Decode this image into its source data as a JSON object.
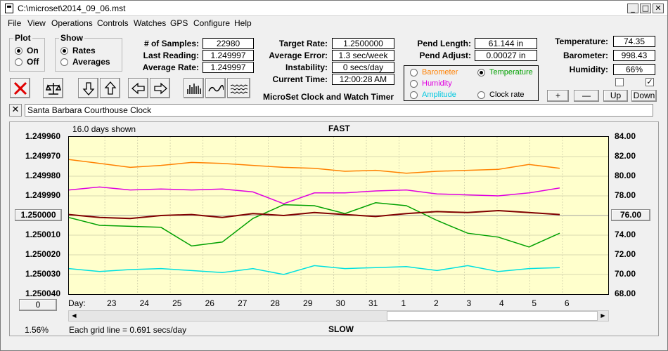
{
  "window": {
    "title": "C:\\microset\\2014_09_06.mst",
    "min_glyph": "_",
    "max_glyph": "□",
    "close_glyph": "✕"
  },
  "menu": [
    "File",
    "View",
    "Operations",
    "Controls",
    "Watches",
    "GPS",
    "Configure",
    "Help"
  ],
  "plot_group": {
    "title": "Plot",
    "on": "On",
    "off": "Off",
    "selected": "On"
  },
  "show_group": {
    "title": "Show",
    "rates": "Rates",
    "averages": "Averages",
    "selected": "Rates"
  },
  "stats": {
    "samples_label": "# of Samples:",
    "samples": "22980",
    "last_label": "Last Reading:",
    "last": "1.249997",
    "avg_label": "Average Rate:",
    "avg": "1.249997"
  },
  "targets": {
    "target_label": "Target Rate:",
    "target": "1.2500000",
    "avgerr_label": "Average Error:",
    "avgerr": "1.3 sec/week",
    "instab_label": "Instability:",
    "instab": "0 secs/day",
    "time_label": "Current Time:",
    "time": "12:00:28 AM",
    "app_name": "MicroSet Clock and Watch Timer"
  },
  "pendulum": {
    "length_label": "Pend Length:",
    "length": "61.144 in",
    "adjust_label": "Pend Adjust:",
    "adjust": "0.00027 in"
  },
  "sensors": {
    "barometer": "Barometer",
    "temperature": "Temperature",
    "humidity": "Humidity",
    "amplitude": "Amplitude",
    "clock_rate": "Clock rate",
    "selected": "Temperature"
  },
  "environment": {
    "temp_label": "Temperature:",
    "temp": "74.35",
    "baro_label": "Barometer:",
    "baro": "998.43",
    "hum_label": "Humidity:",
    "hum": "66%",
    "check1": false,
    "check2": true
  },
  "scale_buttons": {
    "plus": "+",
    "minus": "—",
    "up": "Up",
    "down": "Down"
  },
  "clock_name": "Santa Barbara Courthouse Clock",
  "close_name_glyph": "✕",
  "plot": {
    "days_shown": "16.0 days shown",
    "fast": "FAST",
    "slow": "SLOW",
    "center_rate": "1.250000",
    "center_temp": "76.00",
    "left_zero": "0",
    "percent": "1.56%",
    "grid_note": "Each grid line = 0.691 secs/day",
    "day_label": "Day:"
  },
  "colors": {
    "background": "#ffffcc",
    "rate": "#800000",
    "temperature": "#00a000",
    "barometer": "#ff8000",
    "humidity": "#e000e0",
    "amplitude": "#00e0e0"
  },
  "chart_data": {
    "type": "line",
    "x_label": "Day:",
    "x_ticks": [
      "23",
      "24",
      "25",
      "26",
      "27",
      "28",
      "29",
      "30",
      "31",
      "1",
      "2",
      "3",
      "4",
      "5",
      "6"
    ],
    "left_axis": {
      "ticks": [
        "1.249960",
        "1.249970",
        "1.249980",
        "1.249990",
        "1.250000",
        "1.250010",
        "1.250020",
        "1.250030",
        "1.250040"
      ],
      "ylim": [
        1.24996,
        1.25004
      ]
    },
    "right_axis": {
      "ticks": [
        "84.00",
        "82.00",
        "80.00",
        "78.00",
        "76.00",
        "74.00",
        "72.00",
        "70.00",
        "68.00"
      ],
      "ylim": [
        68.0,
        84.0
      ]
    },
    "series": [
      {
        "name": "Barometer",
        "axis": "right",
        "values": [
          81.7,
          81.3,
          80.9,
          81.1,
          81.4,
          81.3,
          81.1,
          80.9,
          80.8,
          80.5,
          80.6,
          80.3,
          80.5,
          80.6,
          80.7,
          81.2,
          80.8
        ]
      },
      {
        "name": "Humidity",
        "axis": "right",
        "values": [
          78.6,
          78.9,
          78.6,
          78.7,
          78.6,
          78.7,
          78.4,
          77.2,
          78.3,
          78.3,
          78.5,
          78.6,
          78.2,
          78.1,
          78.0,
          78.3,
          78.8
        ]
      },
      {
        "name": "Temperature",
        "axis": "right",
        "values": [
          75.8,
          75.0,
          74.9,
          74.8,
          72.9,
          73.3,
          75.7,
          77.1,
          77.0,
          76.2,
          77.3,
          77.0,
          75.5,
          74.2,
          73.8,
          72.8,
          74.2
        ]
      },
      {
        "name": "Rate",
        "axis": "left",
        "values": [
          1.2499995,
          1.250001,
          1.2500015,
          1.25,
          1.2499995,
          1.250001,
          1.249999,
          1.25,
          1.2499985,
          1.2499995,
          1.2500005,
          1.249999,
          1.249998,
          1.2499985,
          1.2499975,
          1.2499985,
          1.2499995
        ]
      },
      {
        "name": "Amplitude",
        "axis": "right",
        "values": [
          70.6,
          70.3,
          70.5,
          70.6,
          70.4,
          70.2,
          70.6,
          70.0,
          70.9,
          70.6,
          70.7,
          70.8,
          70.4,
          70.9,
          70.3,
          70.6,
          70.7
        ]
      }
    ]
  }
}
